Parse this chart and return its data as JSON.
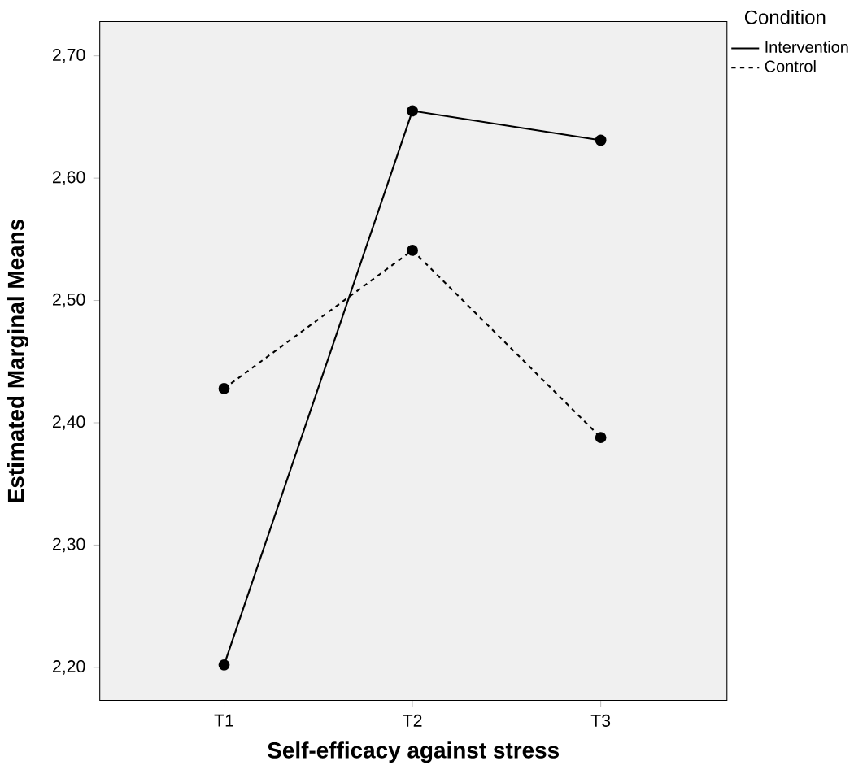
{
  "chart_data": {
    "type": "line",
    "xlabel": "Self-efficacy against stress",
    "ylabel": "Estimated Marginal Means",
    "legend_title": "Condition",
    "categories": [
      "T1",
      "T2",
      "T3"
    ],
    "series": [
      {
        "name": "Intervention",
        "color": "#000000",
        "line_style": "solid",
        "values": [
          2.202,
          2.655,
          2.631
        ]
      },
      {
        "name": "Control",
        "color": "#000000",
        "line_style": "dotted",
        "values": [
          2.428,
          2.541,
          2.388
        ]
      }
    ],
    "ylim": [
      2.173,
      2.728
    ],
    "yticks": [
      {
        "value": 2.2,
        "label": "2,20"
      },
      {
        "value": 2.3,
        "label": "2,30"
      },
      {
        "value": 2.4,
        "label": "2,40"
      },
      {
        "value": 2.5,
        "label": "2,50"
      },
      {
        "value": 2.6,
        "label": "2,60"
      },
      {
        "value": 2.7,
        "label": "2,70"
      }
    ],
    "marker": "circle",
    "legend": "top right",
    "grid": false
  }
}
